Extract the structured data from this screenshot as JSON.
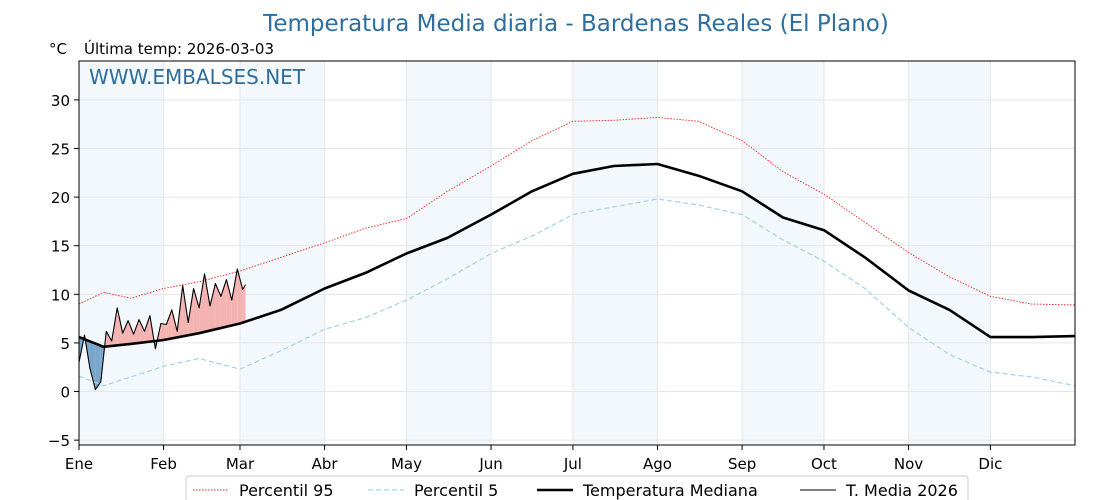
{
  "chart_data": {
    "type": "line",
    "title": "Temperatura Media diaria - Bardenas Reales (El Plano)",
    "ylabel": "°C",
    "last_temp_label": "Última temp: 2026-03-03",
    "watermark": "WWW.EMBALSES.NET",
    "ylim": [
      -5.5,
      34
    ],
    "xlim": [
      1,
      366
    ],
    "y_ticks": [
      -5,
      0,
      5,
      10,
      15,
      20,
      25,
      30
    ],
    "y_tick_labels": [
      "−5",
      "0",
      "5",
      "10",
      "15",
      "20",
      "25",
      "30"
    ],
    "months": [
      {
        "label": "Ene",
        "day": 1
      },
      {
        "label": "Feb",
        "day": 32
      },
      {
        "label": "Mar",
        "day": 60
      },
      {
        "label": "Abr",
        "day": 91
      },
      {
        "label": "May",
        "day": 121
      },
      {
        "label": "Jun",
        "day": 152
      },
      {
        "label": "Jul",
        "day": 182
      },
      {
        "label": "Ago",
        "day": 213
      },
      {
        "label": "Sep",
        "day": 244
      },
      {
        "label": "Oct",
        "day": 274
      },
      {
        "label": "Nov",
        "day": 305
      },
      {
        "label": "Dic",
        "day": 335
      }
    ],
    "grid": true,
    "legend_position": "bottom",
    "series": [
      {
        "name": "Percentil 95",
        "color": "#e8211d",
        "style": "dotted",
        "x": [
          1,
          10,
          20,
          32,
          45,
          60,
          75,
          91,
          106,
          121,
          136,
          152,
          167,
          182,
          197,
          213,
          228,
          244,
          259,
          274,
          289,
          305,
          320,
          335,
          350,
          366
        ],
        "y": [
          9.0,
          10.2,
          9.6,
          10.6,
          11.3,
          12.4,
          13.8,
          15.3,
          16.8,
          17.8,
          20.6,
          23.2,
          25.8,
          27.8,
          27.9,
          28.2,
          27.8,
          25.8,
          22.6,
          20.3,
          17.4,
          14.3,
          11.8,
          9.8,
          9.0,
          8.9
        ]
      },
      {
        "name": "Percentil 5",
        "color": "#a8d4e6",
        "style": "dashed",
        "x": [
          1,
          10,
          20,
          32,
          45,
          60,
          75,
          91,
          106,
          121,
          136,
          152,
          167,
          182,
          197,
          213,
          228,
          244,
          259,
          274,
          289,
          305,
          320,
          335,
          350,
          366
        ],
        "y": [
          1.6,
          0.6,
          1.5,
          2.6,
          3.4,
          2.3,
          4.2,
          6.4,
          7.6,
          9.4,
          11.6,
          14.2,
          16.0,
          18.2,
          19.0,
          19.8,
          19.2,
          18.2,
          15.6,
          13.4,
          10.6,
          6.6,
          3.8,
          2.0,
          1.5,
          0.6
        ]
      },
      {
        "name": "Temperatura Mediana",
        "color": "#000000",
        "style": "solid-thick",
        "x": [
          1,
          10,
          20,
          32,
          45,
          60,
          75,
          91,
          106,
          121,
          136,
          152,
          167,
          182,
          197,
          213,
          228,
          244,
          259,
          274,
          289,
          305,
          320,
          335,
          350,
          366
        ],
        "y": [
          5.6,
          4.6,
          4.9,
          5.3,
          6.0,
          7.0,
          8.4,
          10.6,
          12.2,
          14.2,
          15.8,
          18.2,
          20.6,
          22.4,
          23.2,
          23.4,
          22.2,
          20.6,
          17.9,
          16.6,
          13.8,
          10.4,
          8.4,
          5.6,
          5.6,
          5.7
        ]
      },
      {
        "name": "T. Media 2026",
        "color": "#000000",
        "style": "solid-thin",
        "x": [
          1,
          3,
          5,
          7,
          9,
          11,
          13,
          15,
          17,
          19,
          21,
          23,
          25,
          27,
          29,
          31,
          33,
          35,
          37,
          39,
          41,
          43,
          45,
          47,
          49,
          51,
          53,
          55,
          57,
          59,
          61,
          62
        ],
        "y": [
          3.0,
          5.8,
          2.4,
          0.2,
          1.0,
          6.2,
          5.2,
          8.6,
          6.0,
          7.3,
          5.9,
          7.4,
          6.2,
          7.8,
          4.4,
          7.0,
          6.9,
          8.4,
          6.2,
          10.9,
          7.1,
          10.6,
          8.6,
          12.1,
          8.8,
          11.1,
          9.8,
          11.5,
          9.4,
          12.6,
          10.5,
          11.0
        ]
      }
    ]
  }
}
